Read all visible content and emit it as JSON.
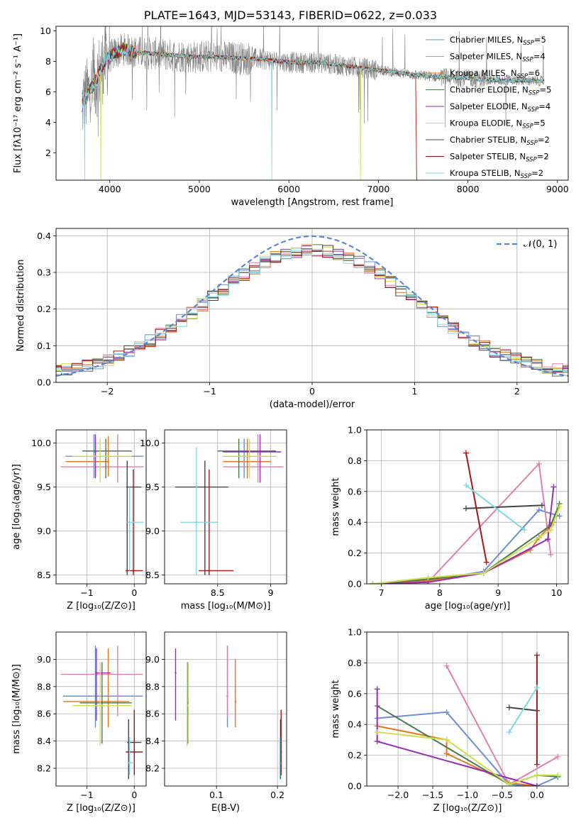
{
  "figure_title": "PLATE=1643, MJD=53143, FIBERID=0622, z=0.033",
  "series_colors": [
    "#6a8fd8",
    "#e07fb0",
    "#e3751f",
    "#4a7a4e",
    "#9a2bb5",
    "#cbe04a",
    "#444444",
    "#a51717",
    "#7fd8e0"
  ],
  "chart_data": [
    {
      "id": "spectrum",
      "type": "line",
      "xlabel": "wavelength [Angstrom, rest frame]",
      "ylabel": "Flux [fλ10⁻¹⁷ erg cm⁻² s⁻¹ A⁻¹]",
      "xlim": [
        3400,
        9120
      ],
      "ylim": [
        0.2,
        10.3
      ],
      "xticks": [
        4000,
        5000,
        6000,
        7000,
        8000,
        9000
      ],
      "yticks": [
        2,
        4,
        6,
        8,
        10
      ],
      "legend_loc": "upper right",
      "legend": [
        "Chabrier MILES, N_SSP=5",
        "Salpeter MILES, N_SSP=4",
        "Kroupa MILES, N_SSP=6",
        "Chabrier ELODIE, N_SSP=5",
        "Salpeter ELODIE, N_SSP=4",
        "Kroupa ELODIE, N_SSP=5",
        "Chabrier STELIB, N_SSP=2",
        "Salpeter STELIB, N_SSP=2",
        "Kroupa STELIB, N_SSP=2"
      ],
      "continuum": {
        "x": [
          3680,
          3750,
          3850,
          3950,
          4050,
          4150,
          4300,
          4500,
          4700,
          4900,
          5100,
          5300,
          5500,
          5700,
          5900,
          6100,
          6300,
          6500,
          6700,
          6900,
          7100,
          7300,
          7420,
          7600,
          7800,
          8000,
          8200,
          8400,
          8600,
          8800
        ],
        "y": [
          5.0,
          5.8,
          6.8,
          8.1,
          8.5,
          8.8,
          8.6,
          8.5,
          8.4,
          8.3,
          8.3,
          8.25,
          8.2,
          8.15,
          8.0,
          7.9,
          7.95,
          7.8,
          7.65,
          7.5,
          7.35,
          7.2,
          7.1,
          7.0,
          6.95,
          6.9,
          6.8,
          6.75,
          6.75,
          6.7
        ]
      }
    },
    {
      "id": "residuals",
      "type": "step",
      "xlabel": "(data-model)/error",
      "ylabel": "Normed distribution",
      "xlim": [
        -2.5,
        2.5
      ],
      "ylim": [
        0,
        0.42
      ],
      "xticks": [
        -2,
        -1,
        0,
        1,
        2
      ],
      "yticks": [
        0.0,
        0.1,
        0.2,
        0.3,
        0.4
      ],
      "legend_loc": "upper right",
      "normal_label": "𝒩(0, 1)"
    },
    {
      "id": "age_vs_Z",
      "type": "errorbar",
      "xlabel": "Z [log₁₀(Z/Z⊙)]",
      "ylabel": "age  [log₁₀(age/yr)]",
      "xlim": [
        -1.65,
        0.25
      ],
      "ylim": [
        8.4,
        10.15
      ],
      "xticks": [
        -1,
        0
      ],
      "yticks": [
        8.5,
        9.0,
        9.5,
        10.0
      ],
      "points": [
        {
          "x": -0.85,
          "y": 9.85,
          "xe": [
            -1.45,
            0.2
          ],
          "ye": [
            9.6,
            10.1
          ],
          "c": 0
        },
        {
          "x": -0.35,
          "y": 9.73,
          "xe": [
            -1.55,
            0.2
          ],
          "ye": [
            9.55,
            10.1
          ],
          "c": 1
        },
        {
          "x": -0.55,
          "y": 9.79,
          "xe": [
            -1.45,
            -0.55
          ],
          "ye": [
            9.62,
            10.08
          ],
          "c": 2
        },
        {
          "x": -0.6,
          "y": 9.91,
          "xe": [
            -1.1,
            -0.05
          ],
          "ye": [
            9.6,
            10.05
          ],
          "c": 3
        },
        {
          "x": -0.82,
          "y": 9.9,
          "xe": [
            -0.82,
            -0.82
          ],
          "ye": [
            9.6,
            10.1
          ],
          "c": 4
        },
        {
          "x": -0.72,
          "y": 9.85,
          "xe": [
            -1.3,
            -0.05
          ],
          "ye": [
            9.55,
            10.05
          ],
          "c": 5
        },
        {
          "x": -0.15,
          "y": 9.5,
          "xe": [
            -0.15,
            0.15
          ],
          "ye": [
            8.5,
            9.8
          ],
          "c": 6
        },
        {
          "x": -0.02,
          "y": 8.55,
          "xe": [
            -0.18,
            0.18
          ],
          "ye": [
            8.5,
            9.7
          ],
          "c": 7
        },
        {
          "x": -0.1,
          "y": 9.1,
          "xe": [
            -0.15,
            0.2
          ],
          "ye": [
            8.55,
            9.5
          ],
          "c": 8
        }
      ]
    },
    {
      "id": "age_vs_mass",
      "type": "errorbar",
      "xlabel": "mass [log₁₀(M/M⊙)]",
      "ylabel": "",
      "xlim": [
        8.0,
        9.15
      ],
      "ylim": [
        8.4,
        10.15
      ],
      "xticks": [
        8.5,
        9.0
      ],
      "yticks": [
        8.5,
        9.0,
        9.5,
        10.0
      ],
      "points": [
        {
          "x": 8.75,
          "y": 9.85,
          "xe": [
            8.55,
            9.05
          ],
          "ye": [
            9.6,
            10.05
          ],
          "c": 0
        },
        {
          "x": 8.88,
          "y": 9.73,
          "xe": [
            8.55,
            9.12
          ],
          "ye": [
            9.55,
            10.1
          ],
          "c": 1
        },
        {
          "x": 8.78,
          "y": 9.79,
          "xe": [
            8.55,
            9.0
          ],
          "ye": [
            9.6,
            10.05
          ],
          "c": 2
        },
        {
          "x": 8.7,
          "y": 9.91,
          "xe": [
            8.5,
            9.05
          ],
          "ye": [
            9.6,
            10.05
          ],
          "c": 3
        },
        {
          "x": 8.9,
          "y": 9.9,
          "xe": [
            8.55,
            9.1
          ],
          "ye": [
            9.55,
            10.1
          ],
          "c": 4
        },
        {
          "x": 8.8,
          "y": 9.85,
          "xe": [
            8.55,
            9.05
          ],
          "ye": [
            9.6,
            10.05
          ],
          "c": 5
        },
        {
          "x": 8.38,
          "y": 9.5,
          "xe": [
            8.1,
            8.6
          ],
          "ye": [
            8.5,
            9.8
          ],
          "c": 6
        },
        {
          "x": 8.42,
          "y": 8.55,
          "xe": [
            8.32,
            8.65
          ],
          "ye": [
            8.5,
            9.7
          ],
          "c": 7
        },
        {
          "x": 8.3,
          "y": 9.1,
          "xe": [
            8.15,
            8.5
          ],
          "ye": [
            8.5,
            9.95
          ],
          "c": 8
        }
      ]
    },
    {
      "id": "weight_vs_age",
      "type": "line",
      "xlabel": "age  [log₁₀(age/yr)]",
      "ylabel": "mass weight",
      "xlim": [
        6.75,
        10.2
      ],
      "ylim": [
        0,
        1.0
      ],
      "xticks": [
        7,
        8,
        9,
        10
      ],
      "yticks": [
        0.0,
        0.2,
        0.4,
        0.6,
        0.8,
        1.0
      ],
      "series": [
        {
          "c": 0,
          "x": [
            6.85,
            7.8,
            8.75,
            9.7,
            10.05
          ],
          "y": [
            0.0,
            0.02,
            0.08,
            0.48,
            0.44
          ]
        },
        {
          "c": 1,
          "x": [
            6.85,
            7.8,
            9.7,
            9.9
          ],
          "y": [
            0.0,
            0.01,
            0.78,
            0.19
          ]
        },
        {
          "c": 2,
          "x": [
            6.85,
            7.8,
            8.75,
            9.55,
            9.7,
            9.95
          ],
          "y": [
            0.0,
            0.02,
            0.07,
            0.22,
            0.3,
            0.4
          ]
        },
        {
          "c": 3,
          "x": [
            6.85,
            7.8,
            8.75,
            9.9,
            10.05
          ],
          "y": [
            0.0,
            0.03,
            0.07,
            0.38,
            0.52
          ]
        },
        {
          "c": 4,
          "x": [
            6.85,
            7.8,
            8.75,
            9.85,
            9.95
          ],
          "y": [
            0.0,
            0.01,
            0.07,
            0.29,
            0.63
          ]
        },
        {
          "c": 5,
          "x": [
            6.85,
            7.8,
            8.75,
            9.9,
            10.05
          ],
          "y": [
            0.0,
            0.04,
            0.07,
            0.35,
            0.5
          ]
        },
        {
          "c": 6,
          "x": [
            8.45,
            9.75
          ],
          "y": [
            0.49,
            0.51
          ]
        },
        {
          "c": 7,
          "x": [
            8.45,
            8.8
          ],
          "y": [
            0.85,
            0.14
          ]
        },
        {
          "c": 8,
          "x": [
            8.45,
            9.45
          ],
          "y": [
            0.64,
            0.35
          ]
        }
      ]
    },
    {
      "id": "mass_vs_Z",
      "type": "errorbar",
      "xlabel": "Z [log₁₀(Z/Z⊙)]",
      "ylabel": "mass [log₁₀(M/M⊙)]",
      "xlim": [
        -1.65,
        0.25
      ],
      "ylim": [
        8.07,
        9.2
      ],
      "xticks": [
        -1,
        0
      ],
      "yticks": [
        8.2,
        8.4,
        8.6,
        8.8,
        9.0
      ],
      "points": [
        {
          "x": -0.82,
          "y": 8.73,
          "xe": [
            -1.5,
            0.18
          ],
          "ye": [
            8.5,
            9.1
          ],
          "c": 0
        },
        {
          "x": -0.35,
          "y": 8.89,
          "xe": [
            -1.55,
            0.18
          ],
          "ye": [
            8.58,
            9.1
          ],
          "c": 1
        },
        {
          "x": -0.55,
          "y": 8.69,
          "xe": [
            -1.5,
            -0.1
          ],
          "ye": [
            8.5,
            9.08
          ],
          "c": 2
        },
        {
          "x": -0.68,
          "y": 8.68,
          "xe": [
            -1.15,
            -0.05
          ],
          "ye": [
            8.38,
            8.98
          ],
          "c": 3
        },
        {
          "x": -0.8,
          "y": 8.9,
          "xe": [
            -0.82,
            -0.5
          ],
          "ye": [
            8.55,
            9.08
          ],
          "c": 4
        },
        {
          "x": -0.72,
          "y": 8.66,
          "xe": [
            -1.3,
            -0.05
          ],
          "ye": [
            8.37,
            8.98
          ],
          "c": 5
        },
        {
          "x": -0.12,
          "y": 8.39,
          "xe": [
            -0.15,
            0.15
          ],
          "ye": [
            8.12,
            8.56
          ],
          "c": 6
        },
        {
          "x": 0.0,
          "y": 8.32,
          "xe": [
            -0.18,
            0.18
          ],
          "ye": [
            8.15,
            8.63
          ],
          "c": 7
        },
        {
          "x": -0.1,
          "y": 8.24,
          "xe": [
            -0.15,
            0.0
          ],
          "ye": [
            8.15,
            8.43
          ],
          "c": 8
        }
      ]
    },
    {
      "id": "mass_vs_EBV",
      "type": "errorbar",
      "xlabel": "E(B-V)",
      "ylabel": "",
      "xlim": [
        0.015,
        0.215
      ],
      "ylim": [
        8.07,
        9.2
      ],
      "xticks": [
        0.1,
        0.2
      ],
      "yticks": [
        8.2,
        8.4,
        8.6,
        8.8,
        9.0
      ],
      "points": [
        {
          "x": 0.118,
          "y": 8.73,
          "ye": [
            8.5,
            9.1
          ],
          "c": 0
        },
        {
          "x": 0.118,
          "y": 8.89,
          "ye": [
            8.58,
            9.1
          ],
          "c": 1
        },
        {
          "x": 0.131,
          "y": 8.69,
          "ye": [
            8.5,
            9.0
          ],
          "c": 2
        },
        {
          "x": 0.053,
          "y": 8.68,
          "ye": [
            8.38,
            8.98
          ],
          "c": 3
        },
        {
          "x": 0.033,
          "y": 8.9,
          "ye": [
            8.55,
            9.08
          ],
          "c": 4
        },
        {
          "x": 0.052,
          "y": 8.66,
          "ye": [
            8.36,
            8.98
          ],
          "c": 5
        },
        {
          "x": 0.205,
          "y": 8.39,
          "ye": [
            8.12,
            8.56
          ],
          "c": 6
        },
        {
          "x": 0.206,
          "y": 8.32,
          "ye": [
            8.15,
            8.63
          ],
          "c": 7
        },
        {
          "x": 0.204,
          "y": 8.24,
          "ye": [
            8.13,
            8.43
          ],
          "c": 8
        }
      ]
    },
    {
      "id": "weight_vs_Z",
      "type": "line",
      "xlabel": "Z [log₁₀(Z/Z⊙)]",
      "ylabel": "mass weight",
      "xlim": [
        -2.45,
        0.45
      ],
      "ylim": [
        0,
        1.0
      ],
      "xticks": [
        -2.0,
        -1.5,
        -1.0,
        -0.5,
        0.0
      ],
      "yticks": [
        0.0,
        0.2,
        0.4,
        0.6,
        0.8,
        1.0
      ],
      "series": [
        {
          "c": 0,
          "x": [
            -2.3,
            -1.3,
            -0.4,
            0.0,
            0.3
          ],
          "y": [
            0.44,
            0.48,
            0.01,
            0.0,
            0.06
          ]
        },
        {
          "c": 1,
          "x": [
            -1.3,
            -0.4,
            0.3
          ],
          "y": [
            0.78,
            0.01,
            0.19
          ]
        },
        {
          "c": 2,
          "x": [
            -2.3,
            -1.3,
            -1.3,
            -0.4,
            0.0
          ],
          "y": [
            0.39,
            0.3,
            0.21,
            0.02,
            0.0
          ]
        },
        {
          "c": 3,
          "x": [
            -2.3,
            -0.4,
            0.0,
            0.3
          ],
          "y": [
            0.52,
            0.01,
            0.07,
            0.06
          ]
        },
        {
          "c": 4,
          "x": [
            -2.3,
            -2.3,
            0.0
          ],
          "y": [
            0.63,
            0.29,
            0.0
          ]
        },
        {
          "c": 5,
          "x": [
            -2.3,
            -1.3,
            -0.4,
            0.0,
            0.3
          ],
          "y": [
            0.35,
            0.3,
            0.01,
            0.07,
            0.07
          ]
        },
        {
          "c": 6,
          "x": [
            -0.4,
            0.0
          ],
          "y": [
            0.51,
            0.49
          ]
        },
        {
          "c": 7,
          "x": [
            0.0,
            0.0
          ],
          "y": [
            0.85,
            0.14
          ]
        },
        {
          "c": 8,
          "x": [
            -0.4,
            0.0
          ],
          "y": [
            0.35,
            0.64
          ]
        }
      ]
    }
  ]
}
